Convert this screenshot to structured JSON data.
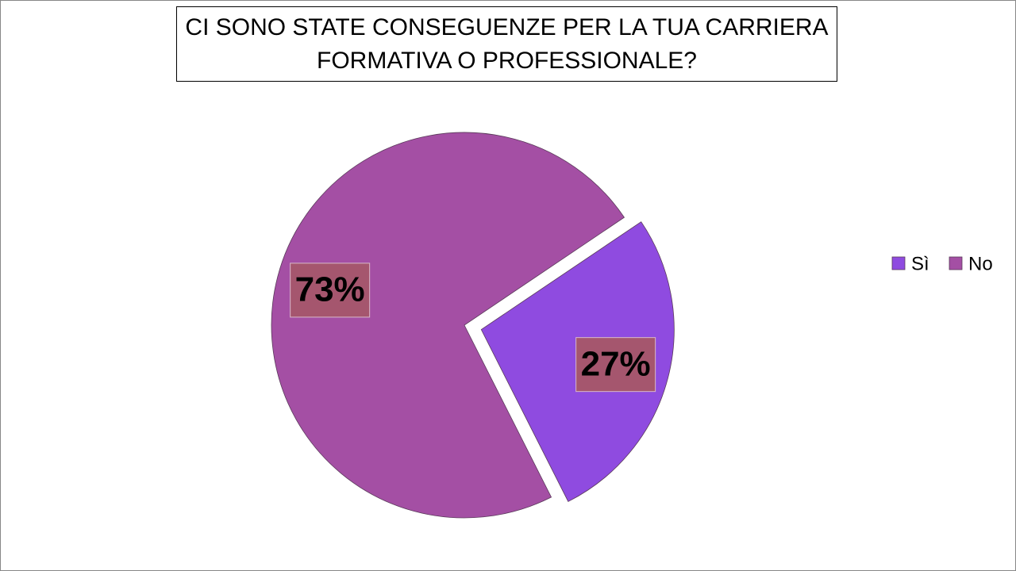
{
  "chart_data": {
    "type": "pie",
    "title": "CI SONO STATE CONSEGUENZE PER LA TUA CARRIERA FORMATIVA O PROFESSIONALE?",
    "categories": [
      "Sì",
      "No"
    ],
    "values": [
      27,
      73
    ],
    "value_labels": [
      "27%",
      "73%"
    ],
    "colors": [
      "#8f4be0",
      "#a44fa4"
    ],
    "legend": "right"
  }
}
